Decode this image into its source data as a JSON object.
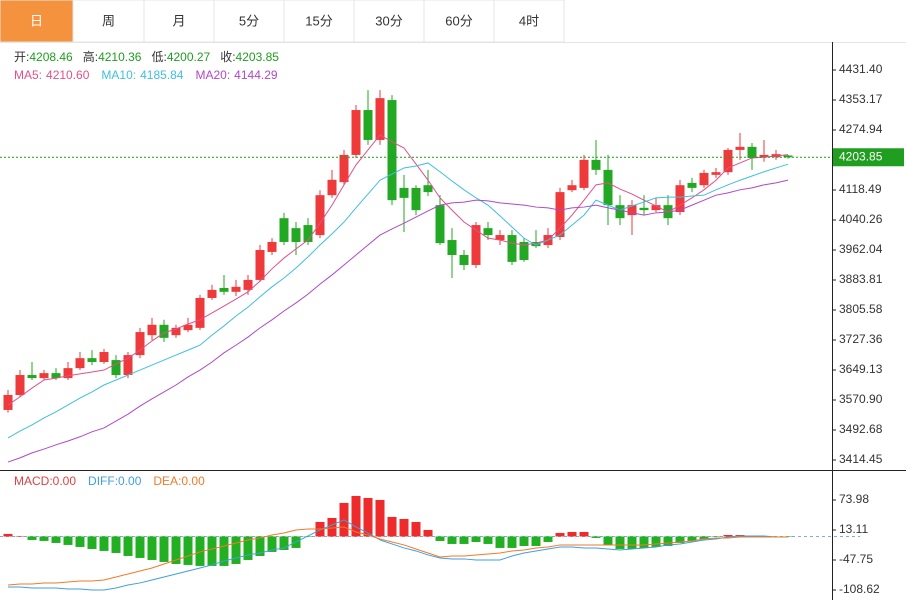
{
  "tabs": [
    "日",
    "周",
    "月",
    "5分",
    "15分",
    "30分",
    "60分",
    "4时"
  ],
  "active_tab": 0,
  "chart_data": [
    {
      "type": "candlestick",
      "ohlc_labels": [
        "开:",
        "高:",
        "低:",
        "收:"
      ],
      "up_color": "#ee3a3a",
      "down_color": "#22a822",
      "last_price_color": "#1f9e1f",
      "open": [
        3545,
        3584,
        3636,
        3628,
        3641,
        3628,
        3654,
        3680,
        3670,
        3675,
        3636,
        3688,
        3740,
        3767,
        3740,
        3753,
        3759,
        3837,
        3863,
        3853,
        3858,
        3884,
        3957,
        4045,
        4019,
        4027,
        4001,
        4105,
        4139,
        4210,
        4327,
        4249,
        4353,
        4124,
        4124,
        4131,
        4079,
        3988,
        3949,
        3923,
        4019,
        3988,
        4001,
        3983,
        3983,
        3975,
        3996,
        4118,
        4124,
        4197,
        4171,
        4079,
        4053,
        4072,
        4066,
        4079,
        4061,
        4137,
        4131,
        4158,
        4165,
        4223,
        4231,
        4204,
        4204,
        4208.46
      ],
      "high": [
        3597,
        3649,
        3670,
        3649,
        3654,
        3670,
        3696,
        3701,
        3704,
        3688,
        3696,
        3759,
        3785,
        3780,
        3767,
        3785,
        3845,
        3871,
        3897,
        3884,
        3897,
        3975,
        3993,
        4059,
        4035,
        4045,
        4118,
        4171,
        4223,
        4340,
        4379,
        4379,
        4366,
        4158,
        4131,
        4171,
        4105,
        4019,
        3962,
        4035,
        4035,
        4014,
        4014,
        3993,
        4014,
        4019,
        4124,
        4145,
        4210,
        4249,
        4210,
        4105,
        4092,
        4105,
        4098,
        4105,
        4145,
        4150,
        4171,
        4176,
        4228,
        4267,
        4241,
        4249,
        4223,
        4210.36
      ],
      "low": [
        3538,
        3579,
        3623,
        3623,
        3623,
        3623,
        3649,
        3662,
        3665,
        3628,
        3628,
        3680,
        3727,
        3722,
        3733,
        3748,
        3753,
        3832,
        3845,
        3842,
        3845,
        3879,
        3949,
        3975,
        3949,
        3975,
        3993,
        4098,
        4131,
        4202,
        4236,
        4236,
        4079,
        4009,
        4053,
        4103,
        3975,
        3889,
        3910,
        3915,
        3988,
        3975,
        3923,
        3931,
        3967,
        3967,
        3988,
        4113,
        4118,
        4158,
        4027,
        4027,
        4001,
        4053,
        4061,
        4027,
        4053,
        4113,
        4124,
        4150,
        4158,
        4197,
        4171,
        4192,
        4197,
        4200.27
      ],
      "close": [
        3584,
        3636,
        3628,
        3641,
        3628,
        3654,
        3680,
        3670,
        3696,
        3636,
        3688,
        3748,
        3767,
        3733,
        3759,
        3767,
        3837,
        3858,
        3853,
        3866,
        3884,
        3962,
        3983,
        3983,
        3983,
        3983,
        4105,
        4145,
        4210,
        4327,
        4249,
        4358,
        4092,
        4098,
        4066,
        4113,
        3980,
        3949,
        3923,
        4027,
        4001,
        4001,
        3931,
        3936,
        3972,
        4001,
        4113,
        4131,
        4197,
        4171,
        4079,
        4045,
        4079,
        4066,
        4079,
        4045,
        4131,
        4124,
        4163,
        4165,
        4223,
        4231,
        4202,
        4210,
        4212,
        4203.85
      ],
      "series": [
        {
          "name": "MA5:",
          "value_label": "4210.60",
          "color": "#e0508a",
          "values": [
            3558,
            3579,
            3602,
            3623,
            3628,
            3634,
            3639,
            3644,
            3649,
            3665,
            3680,
            3701,
            3725,
            3746,
            3756,
            3769,
            3780,
            3798,
            3816,
            3834,
            3853,
            3881,
            3913,
            3941,
            3965,
            3988,
            4032,
            4079,
            4132,
            4184,
            4223,
            4262,
            4244,
            4228,
            4186,
            4144,
            4098,
            4066,
            4035,
            4014,
            3993,
            3988,
            3980,
            3975,
            3980,
            3988,
            4019,
            4053,
            4092,
            4132,
            4137,
            4121,
            4108,
            4092,
            4077,
            4061,
            4079,
            4098,
            4119,
            4144,
            4176,
            4189,
            4202,
            4204,
            4207,
            4210.6
          ]
        },
        {
          "name": "MA10:",
          "value_label": "4185.84",
          "color": "#3fbfdf",
          "values": [
            3472,
            3490,
            3506,
            3524,
            3540,
            3558,
            3576,
            3592,
            3610,
            3623,
            3636,
            3649,
            3662,
            3675,
            3688,
            3701,
            3714,
            3740,
            3764,
            3790,
            3813,
            3840,
            3866,
            3889,
            3915,
            3944,
            3975,
            4004,
            4035,
            4072,
            4108,
            4144,
            4160,
            4176,
            4181,
            4189,
            4166,
            4142,
            4119,
            4098,
            4079,
            4051,
            4022,
            3993,
            3975,
            3988,
            4001,
            4027,
            4053,
            4092,
            4079,
            4066,
            4077,
            4087,
            4098,
            4100,
            4100,
            4103,
            4105,
            4119,
            4132,
            4144,
            4155,
            4166,
            4176,
            4185.84
          ]
        },
        {
          "name": "MA20:",
          "value_label": "4144.29",
          "color": "#b048c8",
          "values": [
            3409,
            3420,
            3433,
            3443,
            3454,
            3464,
            3475,
            3488,
            3498,
            3516,
            3534,
            3555,
            3574,
            3592,
            3610,
            3631,
            3649,
            3670,
            3694,
            3714,
            3735,
            3759,
            3780,
            3803,
            3824,
            3847,
            3873,
            3897,
            3923,
            3949,
            3975,
            4001,
            4017,
            4032,
            4048,
            4064,
            4079,
            4085,
            4087,
            4092,
            4090,
            4085,
            4082,
            4079,
            4074,
            4072,
            4066,
            4072,
            4074,
            4079,
            4072,
            4066,
            4059,
            4053,
            4059,
            4061,
            4066,
            4079,
            4092,
            4105,
            4111,
            4119,
            4124,
            4132,
            4137,
            4144.29
          ]
        }
      ],
      "ylim": [
        3388.37,
        4504.41
      ],
      "yticks": [
        {
          "value": 4431.4,
          "label": "4431.40"
        },
        4353.17,
        4274.94,
        4118.49,
        4040.26,
        3962.04,
        3883.81,
        3805.58,
        3727.36,
        3649.13,
        {
          "value": 3570.9,
          "label": "3570.90"
        },
        3492.68,
        3414.45
      ]
    },
    {
      "type": "macd",
      "legend": [
        {
          "text": "MACD:0.00",
          "color": "#e04040"
        },
        {
          "text": "DIFF:0.00",
          "color": "#3f9fe0"
        },
        {
          "text": "DEA:0.00",
          "color": "#f07a2a"
        }
      ],
      "up_color": "#ee2a2a",
      "down_color": "#22b022",
      "values": [
        5.1,
        1,
        -7.1,
        -9.1,
        -13.2,
        -17.2,
        -21.3,
        -25.4,
        -29.4,
        -33.5,
        -39.6,
        -43.6,
        -47.7,
        -51.7,
        -55.8,
        -57.8,
        -59.8,
        -59.8,
        -59.8,
        -55.8,
        -47.7,
        -39.6,
        -31.4,
        -27.4,
        -23.3,
        -1,
        29.4,
        37.5,
        68,
        82.2,
        78.1,
        74.1,
        39.6,
        35.5,
        29.4,
        13.2,
        -9.1,
        -15.2,
        -15.2,
        -11.2,
        -15.2,
        -23.3,
        -23.3,
        -19.3,
        -19.3,
        -11.2,
        7.1,
        9.1,
        9.1,
        -3,
        -17.2,
        -25.4,
        -25.4,
        -23.3,
        -21.3,
        -19.3,
        -13.2,
        -9.1,
        -5.1,
        -1,
        3,
        3,
        1,
        -1,
        -1,
        -1
      ],
      "series": [
        {
          "name": "DIFF",
          "color": "#3f9fe0",
          "values": [
            -102.5,
            -102.5,
            -104.5,
            -104.5,
            -104.5,
            -106.5,
            -106.5,
            -108.5,
            -108.5,
            -104.5,
            -98.4,
            -94.3,
            -88.3,
            -82.2,
            -76.1,
            -70,
            -63.9,
            -57.8,
            -49.7,
            -43.6,
            -37.5,
            -33.5,
            -27.4,
            -23.3,
            -11.2,
            1,
            13.2,
            23.3,
            33.5,
            19.3,
            7.1,
            -7.1,
            -15.2,
            -23.3,
            -29.4,
            -37.5,
            -43.6,
            -45.6,
            -45.6,
            -47.7,
            -47.7,
            -47.7,
            -39.6,
            -33.5,
            -29.4,
            -25.4,
            -21.3,
            -21.3,
            -23.3,
            -23.3,
            -25.4,
            -27.4,
            -25.4,
            -23.3,
            -21.3,
            -17.2,
            -15.2,
            -11.2,
            -7.1,
            -5.1,
            -1,
            1,
            1,
            1,
            -1,
            -1
          ]
        },
        {
          "name": "DEA",
          "color": "#f07a2a",
          "values": [
            -98.4,
            -96.4,
            -96.4,
            -94.3,
            -94.3,
            -92.3,
            -90.3,
            -90.3,
            -88.3,
            -82.2,
            -76.1,
            -70,
            -63.9,
            -55.8,
            -47.7,
            -39.6,
            -31.4,
            -25.4,
            -19.3,
            -13.2,
            -7.1,
            -3,
            3,
            7.1,
            13.2,
            15.2,
            15.2,
            17.2,
            19.3,
            9.1,
            3,
            -5.1,
            -11.2,
            -17.2,
            -25.4,
            -33.5,
            -41.6,
            -39.6,
            -39.6,
            -37.5,
            -35.5,
            -33.5,
            -29.4,
            -27.4,
            -23.3,
            -21.3,
            -17.2,
            -17.2,
            -17.2,
            -17.2,
            -17.2,
            -17.2,
            -17.2,
            -17.2,
            -15.2,
            -13.2,
            -11.2,
            -9.1,
            -5.1,
            -3,
            -3,
            -1,
            -1,
            -1,
            -1,
            -1
          ]
        }
      ],
      "ylim": [
        -128.91,
        130.79
      ],
      "yticks": [
        73.98,
        13.11,
        -47.75,
        -108.62
      ]
    }
  ]
}
